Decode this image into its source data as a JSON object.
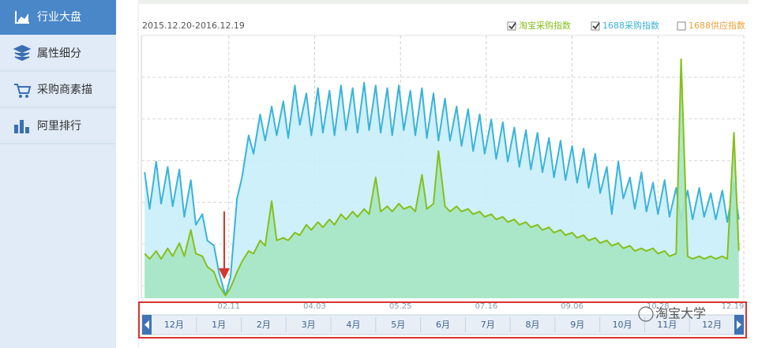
{
  "sidebar": {
    "items": [
      "行业大盘",
      "属性细分",
      "采购商素描",
      "阿里排行"
    ]
  },
  "chart_data": {
    "type": "area",
    "subtitle": "2015.12.20-2016.12.19",
    "x": [
      2,
      5,
      9,
      12,
      16,
      19,
      23,
      26,
      30,
      33,
      37,
      40,
      44,
      47,
      51,
      54,
      58,
      61,
      65,
      68,
      72,
      75,
      79,
      82,
      86,
      89,
      93,
      96,
      100,
      103,
      107,
      110,
      114,
      117,
      121,
      124,
      128,
      131,
      135,
      138,
      142,
      145,
      149,
      152,
      156,
      159,
      163,
      166,
      170,
      173,
      177,
      180,
      184,
      187,
      191,
      194,
      198,
      201,
      205,
      208,
      212,
      215,
      219,
      222,
      226,
      229,
      233,
      236,
      240,
      243,
      247,
      250,
      254,
      257,
      261,
      264,
      268,
      271,
      275,
      278,
      282,
      285,
      289,
      292,
      296,
      299,
      303,
      306,
      310,
      313,
      317,
      320,
      324,
      327,
      331,
      334,
      338,
      341,
      345,
      348,
      352,
      355,
      359,
      362
    ],
    "xlim": [
      0,
      365
    ],
    "xticks": [
      {
        "value": 53,
        "label": "02.11"
      },
      {
        "value": 105,
        "label": "04.03"
      },
      {
        "value": 157,
        "label": "05.25"
      },
      {
        "value": 209,
        "label": "07.16"
      },
      {
        "value": 261,
        "label": "09.06"
      },
      {
        "value": 313,
        "label": "10.28"
      },
      {
        "value": 365,
        "label": "12.19"
      }
    ],
    "ylim": [
      0,
      100
    ],
    "series": [
      {
        "name": "1688采购指数",
        "color": "#3ab3d9",
        "fill": "#c8eef9",
        "checked": true,
        "values": [
          48,
          34,
          52,
          36,
          50,
          35,
          49,
          31,
          45,
          28,
          32,
          22,
          20,
          10,
          1,
          8,
          38,
          46,
          62,
          55,
          70,
          60,
          73,
          62,
          75,
          61,
          81,
          66,
          78,
          62,
          80,
          63,
          79,
          62,
          81,
          64,
          80,
          63,
          82,
          64,
          81,
          63,
          80,
          62,
          81,
          64,
          79,
          62,
          80,
          61,
          78,
          60,
          76,
          60,
          73,
          58,
          72,
          56,
          70,
          55,
          68,
          53,
          67,
          52,
          65,
          50,
          64,
          49,
          63,
          48,
          61,
          46,
          60,
          45,
          58,
          44,
          57,
          42,
          55,
          40,
          50,
          32,
          52,
          38,
          46,
          34,
          48,
          33,
          44,
          32,
          45,
          31,
          42,
          30,
          41,
          30,
          42,
          31,
          40,
          30,
          41,
          29,
          44,
          30
        ]
      },
      {
        "name": "淘宝采购指数",
        "color": "#86bf1c",
        "fill": "#a6e6c2",
        "checked": true,
        "values": [
          17,
          15,
          18,
          15,
          19,
          16,
          21,
          16,
          26,
          17,
          16,
          12,
          10,
          5,
          1,
          4,
          10,
          14,
          18,
          17,
          22,
          20,
          37,
          22,
          23,
          22,
          25,
          24,
          28,
          26,
          29,
          27,
          30,
          28,
          32,
          30,
          33,
          31,
          34,
          32,
          46,
          33,
          35,
          33,
          36,
          34,
          35,
          33,
          47,
          34,
          36,
          56,
          35,
          33,
          35,
          33,
          34,
          32,
          33,
          31,
          32,
          30,
          31,
          29,
          30,
          28,
          29,
          27,
          28,
          26,
          27,
          25,
          26,
          24,
          25,
          23,
          24,
          22,
          23,
          21,
          22,
          20,
          21,
          19,
          20,
          18,
          19,
          18,
          19,
          17,
          18,
          16,
          17,
          91,
          16,
          15,
          16,
          15,
          16,
          15,
          16,
          15,
          63,
          18
        ]
      }
    ],
    "unchecked_series": [
      {
        "name": "1688供应指数",
        "color": "#e8a33b"
      }
    ],
    "navigator": {
      "months": [
        "12月",
        "1月",
        "2月",
        "3月",
        "4月",
        "5月",
        "6月",
        "7月",
        "8月",
        "9月",
        "10月",
        "11月",
        "12月"
      ]
    }
  },
  "watermark": "淘宝大学"
}
